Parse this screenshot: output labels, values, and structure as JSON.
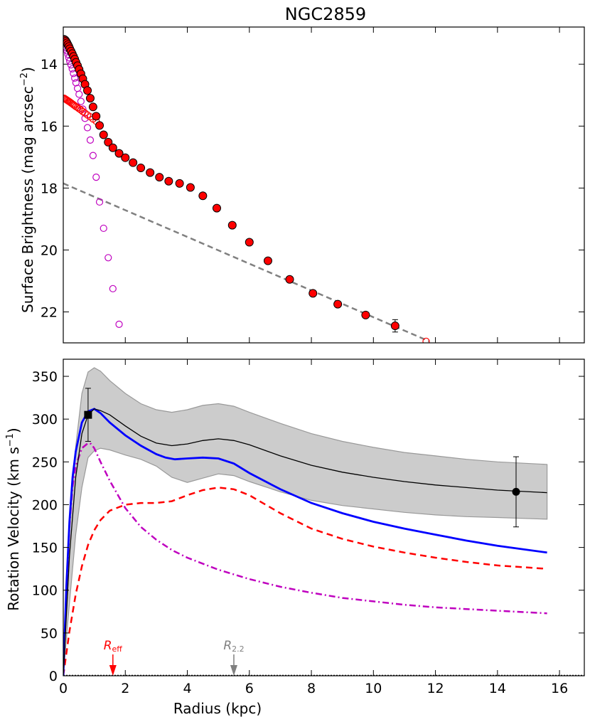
{
  "colors": {
    "observed": "#ff0000",
    "bulge": "#bf00bf",
    "disk_line": "#808080",
    "total_model": "#0000ff",
    "band_fill": "#cccccc",
    "band_edge": "#999999",
    "disk_rc": "#ff0000",
    "r_eff_marker": "#ff0000",
    "r22_marker": "#808080"
  },
  "chart_data": [
    {
      "type": "scatter",
      "title": "NGC2859",
      "xlabel": "Radius (kpc)",
      "ylabel_main": "Surface Brightness (mag arcsec",
      "ylabel_sup": "−2",
      "ylabel_close": ")",
      "xlim": [
        0,
        16.8
      ],
      "ylim": [
        23.0,
        12.8
      ],
      "yticks": [
        "14",
        "16",
        "18",
        "20",
        "22"
      ],
      "ytick_values": [
        14,
        16,
        18,
        20,
        22
      ],
      "xtick_values": [
        0,
        2,
        4,
        6,
        8,
        10,
        12,
        14,
        16
      ],
      "series": [
        {
          "name": "observed profile",
          "marker": "filled-circle",
          "x": [
            0.03,
            0.06,
            0.09,
            0.12,
            0.15,
            0.18,
            0.21,
            0.25,
            0.29,
            0.33,
            0.37,
            0.41,
            0.46,
            0.51,
            0.57,
            0.63,
            0.7,
            0.78,
            0.87,
            0.96,
            1.06,
            1.17,
            1.3,
            1.45,
            1.6,
            1.8,
            2.0,
            2.25,
            2.5,
            2.8,
            3.1,
            3.4,
            3.75,
            4.1,
            4.5,
            4.95,
            5.45,
            6.0,
            6.6,
            7.3,
            8.05,
            8.85,
            9.75,
            10.7
          ],
          "y": [
            13.2,
            13.22,
            13.26,
            13.31,
            13.37,
            13.43,
            13.5,
            13.58,
            13.66,
            13.75,
            13.84,
            13.94,
            14.05,
            14.17,
            14.31,
            14.47,
            14.65,
            14.85,
            15.1,
            15.38,
            15.68,
            15.98,
            16.28,
            16.52,
            16.7,
            16.88,
            17.02,
            17.18,
            17.35,
            17.5,
            17.65,
            17.78,
            17.85,
            17.98,
            18.25,
            18.65,
            19.2,
            19.75,
            20.35,
            20.95,
            21.4,
            21.75,
            22.1,
            22.45
          ],
          "error_bar_index": 43,
          "error_bar_size": 0.2
        },
        {
          "name": "bulge component",
          "marker": "open-circle",
          "x": [
            0.03,
            0.06,
            0.09,
            0.12,
            0.15,
            0.18,
            0.21,
            0.25,
            0.29,
            0.33,
            0.37,
            0.41,
            0.46,
            0.51,
            0.57,
            0.63,
            0.7,
            0.78,
            0.87,
            0.96,
            1.06,
            1.17,
            1.3,
            1.45,
            1.6,
            1.8
          ],
          "y": [
            13.25,
            13.35,
            13.46,
            13.57,
            13.68,
            13.79,
            13.9,
            14.02,
            14.15,
            14.3,
            14.45,
            14.6,
            14.78,
            14.97,
            15.2,
            15.45,
            15.75,
            16.05,
            16.45,
            16.95,
            17.65,
            18.45,
            19.3,
            20.25,
            21.25,
            22.4
          ]
        },
        {
          "name": "disk component",
          "marker": "open-circle",
          "x": [
            0.03,
            0.06,
            0.09,
            0.12,
            0.15,
            0.18,
            0.21,
            0.25,
            0.29,
            0.33,
            0.37,
            0.41,
            0.46,
            0.51,
            0.57,
            0.63,
            0.7,
            0.78,
            0.87,
            0.96,
            1.06,
            11.7
          ],
          "y": [
            15.1,
            15.12,
            15.14,
            15.16,
            15.18,
            15.2,
            15.22,
            15.25,
            15.28,
            15.31,
            15.34,
            15.37,
            15.4,
            15.44,
            15.48,
            15.53,
            15.58,
            15.64,
            15.7,
            15.77,
            15.84,
            22.95
          ]
        },
        {
          "name": "disk extrapolation",
          "style": "dashed-line",
          "x": [
            0,
            11.8
          ],
          "y": [
            17.85,
            22.95
          ]
        }
      ]
    },
    {
      "type": "line",
      "xlabel": "Radius (kpc)",
      "ylabel_main": "Rotation Velocity (km s",
      "ylabel_sup": "−1",
      "ylabel_close": ")",
      "xlim": [
        0,
        16.8
      ],
      "ylim": [
        0,
        370
      ],
      "xticks": [
        "0",
        "2",
        "4",
        "6",
        "8",
        "10",
        "12",
        "14",
        "16"
      ],
      "xtick_values": [
        0,
        2,
        4,
        6,
        8,
        10,
        12,
        14,
        16
      ],
      "yticks": [
        "0",
        "50",
        "100",
        "150",
        "200",
        "250",
        "300",
        "350"
      ],
      "ytick_values": [
        0,
        50,
        100,
        150,
        200,
        250,
        300,
        350
      ],
      "band": {
        "name": "uncertainty band",
        "x": [
          0.0,
          0.2,
          0.4,
          0.6,
          0.8,
          1.0,
          1.2,
          1.5,
          2.0,
          2.5,
          3.0,
          3.5,
          4.0,
          4.5,
          5.0,
          5.5,
          6.0,
          7.0,
          8.0,
          9.0,
          10.0,
          11.0,
          12.0,
          13.0,
          14.0,
          15.6
        ],
        "upper": [
          30,
          170,
          268,
          330,
          355,
          360,
          356,
          345,
          330,
          318,
          311,
          308,
          311,
          316,
          318,
          315,
          308,
          295,
          283,
          274,
          267,
          261,
          257,
          253,
          250,
          247
        ],
        "lower": [
          0,
          85,
          165,
          220,
          255,
          263,
          266,
          264,
          258,
          253,
          245,
          232,
          226,
          231,
          236,
          234,
          227,
          215,
          205,
          199,
          195,
          191,
          188,
          186,
          185,
          183
        ]
      },
      "series": [
        {
          "name": "median model",
          "style": "solid-thin",
          "x": [
            0.0,
            0.2,
            0.4,
            0.6,
            0.8,
            1.0,
            1.2,
            1.5,
            2.0,
            2.5,
            3.0,
            3.5,
            4.0,
            4.5,
            5.0,
            5.5,
            6.0,
            7.0,
            8.0,
            9.0,
            10.0,
            11.0,
            12.0,
            13.0,
            14.0,
            15.6
          ],
          "values": [
            0,
            140,
            232,
            283,
            305,
            312,
            310,
            305,
            292,
            280,
            272,
            269,
            271,
            275,
            277,
            275,
            270,
            257,
            246,
            238,
            232,
            227,
            223,
            220,
            217,
            214
          ]
        },
        {
          "name": "total model",
          "style": "solid-thick",
          "x": [
            0.0,
            0.1,
            0.2,
            0.3,
            0.4,
            0.6,
            0.8,
            1.0,
            1.2,
            1.5,
            2.0,
            2.5,
            3.0,
            3.3,
            3.6,
            4.0,
            4.5,
            5.0,
            5.5,
            6.0,
            7.0,
            8.0,
            9.0,
            10.0,
            11.0,
            12.0,
            13.0,
            14.0,
            15.6
          ],
          "values": [
            0,
            105,
            180,
            232,
            262,
            296,
            309,
            312,
            307,
            296,
            281,
            269,
            259,
            255,
            253,
            254,
            255,
            254,
            248,
            237,
            218,
            202,
            190,
            180,
            172,
            165,
            158,
            152,
            144
          ]
        },
        {
          "name": "disk contribution",
          "style": "dashed",
          "x": [
            0.0,
            0.2,
            0.4,
            0.6,
            0.8,
            1.0,
            1.2,
            1.5,
            2.0,
            2.5,
            3.0,
            3.5,
            4.0,
            4.5,
            5.0,
            5.5,
            6.0,
            7.0,
            8.0,
            9.0,
            10.0,
            11.0,
            12.0,
            13.0,
            14.0,
            15.6
          ],
          "values": [
            0,
            52,
            95,
            128,
            153,
            170,
            182,
            193,
            200,
            202,
            202,
            204,
            211,
            217,
            220,
            218,
            211,
            190,
            172,
            160,
            151,
            144,
            138,
            133,
            129,
            125
          ]
        },
        {
          "name": "bulge contribution",
          "style": "dash-dot",
          "x": [
            0.0,
            0.1,
            0.2,
            0.3,
            0.4,
            0.6,
            0.8,
            0.9,
            1.0,
            1.2,
            1.5,
            2.0,
            2.5,
            3.0,
            3.5,
            4.0,
            5.0,
            6.0,
            7.0,
            8.0,
            9.0,
            10.0,
            11.0,
            12.0,
            13.0,
            14.0,
            15.6
          ],
          "values": [
            0,
            95,
            175,
            221,
            245,
            266,
            272,
            271,
            266,
            250,
            228,
            196,
            174,
            159,
            147,
            138,
            124,
            113,
            104,
            97,
            91,
            87,
            83,
            80,
            78,
            76,
            73
          ]
        }
      ],
      "points": [
        {
          "name": "inner data point",
          "marker": "square",
          "x": 0.8,
          "y": 305,
          "err": 31
        },
        {
          "name": "outer data point",
          "marker": "circle",
          "x": 14.6,
          "y": 215,
          "err": 41
        }
      ],
      "markers": [
        {
          "name": "r-eff",
          "label_main": "R",
          "label_sub": "eff",
          "x": 1.6
        },
        {
          "name": "r-2.2",
          "label_main": "R",
          "label_sub": "2.2",
          "x": 5.5
        }
      ]
    }
  ]
}
